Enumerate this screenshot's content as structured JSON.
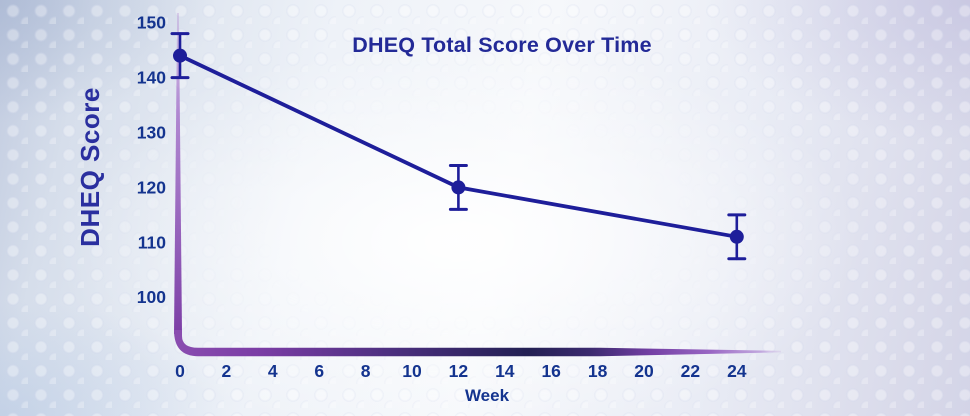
{
  "colors": {
    "title_text": "#232a97",
    "ylabel_text": "#2a2f9f",
    "axis_text": "#14348f",
    "series_line": "#1e1e9a",
    "marker_fill": "#1e1e9a",
    "axis_purple": "#7b3da5",
    "axis_purple_light": "#a878cc",
    "axis_purple_pale": "#b48ad2",
    "axis_navy": "#232053",
    "axis_fade": "#cbb0e2",
    "background_edge_blue": "#c5cfe3",
    "background_lavender": "#d8d7ea",
    "background_center": "#f9fafd"
  },
  "chart_data": {
    "type": "line",
    "title": "DHEQ Total Score Over Time",
    "xlabel": "Week",
    "ylabel": "DHEQ Score",
    "x": [
      0,
      12,
      24
    ],
    "series": [
      {
        "name": "DHEQ Total Score",
        "values": [
          144,
          120,
          111
        ],
        "error_bars": [
          4,
          4,
          4
        ]
      }
    ],
    "x_ticks": [
      0,
      2,
      4,
      6,
      8,
      10,
      12,
      14,
      16,
      18,
      20,
      22,
      24
    ],
    "y_ticks": [
      100,
      110,
      120,
      130,
      140,
      150
    ],
    "xlim": [
      0,
      26
    ],
    "ylim": [
      90,
      152
    ],
    "grid": false,
    "legend": "none",
    "marker": "circle",
    "error_bars_visible": true
  }
}
